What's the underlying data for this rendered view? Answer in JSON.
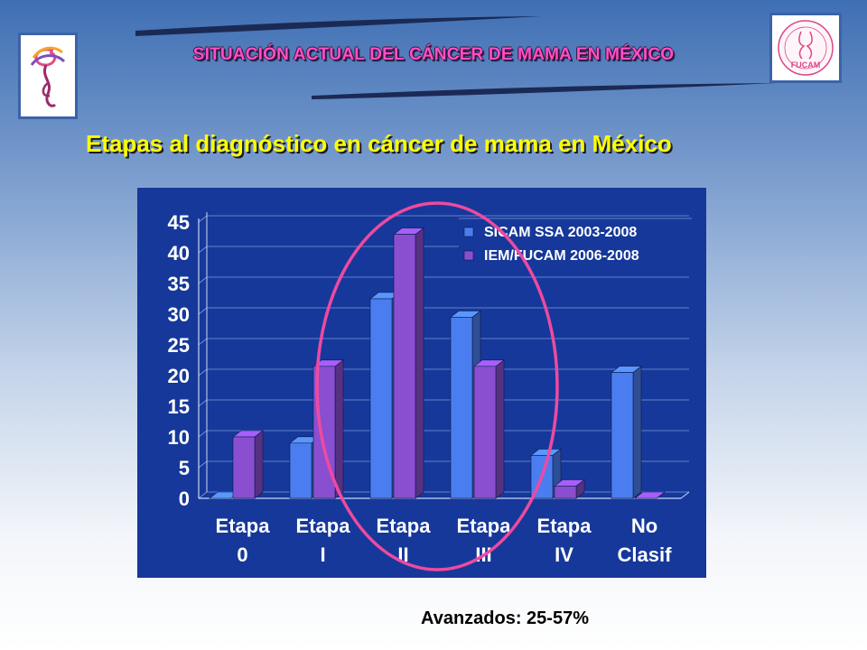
{
  "header": {
    "title": "SITUACIÓN ACTUAL DEL CÁNCER DE MAMA EN MÉXICO",
    "left_logo_icon": "ribbon-woman-logo-icon",
    "right_logo_icon": "fucam-logo-icon",
    "right_logo_text": "FUCAM"
  },
  "subtitle": "Etapas al diagnóstico en cáncer de mama en México",
  "footnote": "Avanzados: 25-57%",
  "colors": {
    "series1": "#4a7ef0",
    "series2": "#8a4fd0",
    "chart_bg": "#16389a",
    "subtitle": "#ffff00",
    "header": "#ff4fc8",
    "highlight_ellipse": "#ee4aa0"
  },
  "chart_data": {
    "type": "bar",
    "categories": [
      "Etapa 0",
      "Etapa I",
      "Etapa II",
      "Etapa III",
      "Etapa IV",
      "No Clasif"
    ],
    "category_labels": [
      [
        "Etapa",
        "0"
      ],
      [
        "Etapa",
        "I"
      ],
      [
        "Etapa",
        "II"
      ],
      [
        "Etapa",
        "III"
      ],
      [
        "Etapa",
        "IV"
      ],
      [
        "No",
        "Clasif"
      ]
    ],
    "series": [
      {
        "name": "SICAM SSA 2003-2008",
        "values": [
          0,
          9,
          32.5,
          29.5,
          7,
          20.5
        ]
      },
      {
        "name": "IEM/FUCAM 2006-2008",
        "values": [
          10,
          21.5,
          43,
          21.5,
          2,
          0
        ]
      }
    ],
    "y_ticks": [
      "0",
      "5",
      "10",
      "15",
      "20",
      "25",
      "30",
      "35",
      "40",
      "45"
    ],
    "ylim": [
      0,
      45
    ],
    "grid": true,
    "legend_position": "top-right",
    "highlight": "ellipse around Etapa I to Etapa III",
    "title": "",
    "xlabel": "",
    "ylabel": ""
  }
}
